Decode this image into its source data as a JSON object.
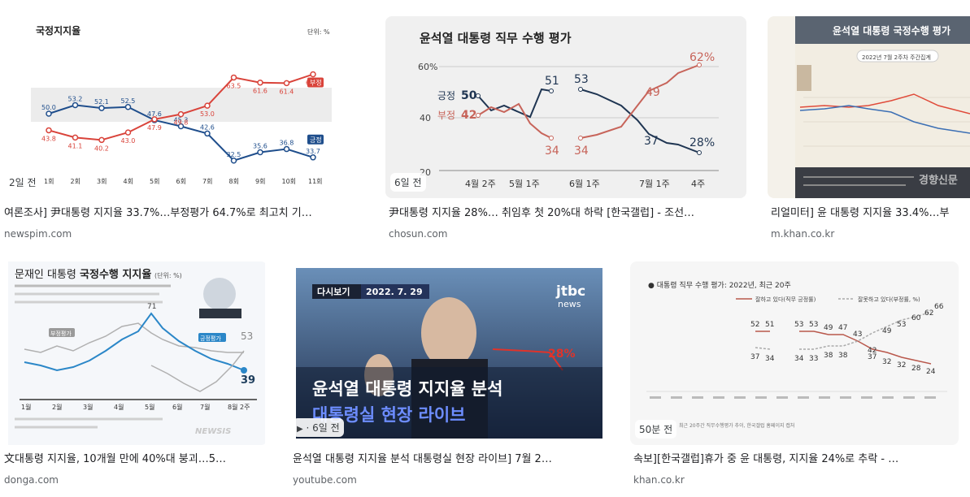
{
  "results": [
    {
      "age": "2일 전",
      "title": "여론조사] 尹대통령 지지율 33.7%…부정평가 64.7%로 최고치 기…",
      "source": "newspim.com",
      "thumb": {
        "heading": "국정지지율",
        "unit": "단위: %",
        "chart_data": {
          "type": "line",
          "categories": [
            "1회",
            "2회",
            "3회",
            "4회",
            "5회",
            "6회",
            "7회",
            "8회",
            "9회",
            "10회",
            "11회"
          ],
          "series": [
            {
              "name": "긍정",
              "values": [
                50.0,
                53.2,
                52.1,
                52.5,
                47.6,
                45.3,
                42.6,
                32.5,
                35.6,
                36.8,
                33.7
              ],
              "color": "#1f4e8c"
            },
            {
              "name": "부정",
              "values": [
                43.8,
                41.1,
                40.2,
                43.0,
                47.9,
                49.8,
                53.0,
                63.5,
                61.6,
                61.4,
                64.7
              ],
              "color": "#d9433a"
            }
          ]
        }
      }
    },
    {
      "age": "6일 전",
      "title": "尹대통령 지지율 28%… 취임후 첫 20%대 하락 [한국갤럽] - 조선…",
      "source": "chosun.com",
      "thumb": {
        "heading": "윤석열 대통령 직무 수행 평가",
        "y_ticks": [
          "60%",
          "40",
          "20"
        ],
        "x_ticks": [
          "4월 2주",
          "5월 1주",
          "6월 1주",
          "7월 1주",
          "4주"
        ],
        "labels": {
          "pos_name": "긍정",
          "pos_start": "50",
          "neg_name": "부정",
          "neg_start": "42",
          "pos_a": "51",
          "pos_b": "53",
          "pos_c": "37",
          "pos_end": "28%",
          "neg_a": "34",
          "neg_b": "34",
          "neg_c": "49",
          "neg_end": "62%"
        }
      }
    },
    {
      "age": "",
      "title": "리얼미터] 윤 대통령 지지율 33.4%…부",
      "source": "m.khan.co.kr",
      "thumb": {
        "heading": "윤석열 대통령 국정수행 평가",
        "subheading": "2022년 7월 2주차 주간집계",
        "watermark": "경향신문"
      }
    },
    {
      "age": "",
      "title": "文대통령 지지율, 10개월 만에 40%대 붕괴…5…",
      "source": "donga.com",
      "thumb": {
        "heading_a": "문재인 대통령 ",
        "heading_b": "국정수행 지지율",
        "unit": "(단위: %)",
        "neg_label": "부정평가",
        "pos_label": "긍정평가",
        "peak": "71",
        "end_pos": "39",
        "end_neg": "53",
        "x_ticks": [
          "1월",
          "2월",
          "3월",
          "4월",
          "5월",
          "6월",
          "7월",
          "8월 2주"
        ],
        "watermark": "NEWSIS"
      }
    },
    {
      "age": "· 6일 전",
      "title": "윤석열 대통령 지지율 분석 대통령실 현장 라이브] 7월 2…",
      "source": "youtube.com",
      "thumb": {
        "badge_a": "다시보기",
        "badge_b": "2022. 7. 29",
        "logo_a": "jtbc",
        "logo_b": "news",
        "pct": "28%",
        "line1": "윤석열 대통령 지지율 분석",
        "line2": "대통령실 현장 라이브"
      }
    },
    {
      "age": "50분 전",
      "title": "속보][한국갤럽]휴가 중 윤 대통령, 지지율 24%로 추락 - …",
      "source": "khan.co.kr",
      "thumb": {
        "heading": "● 대통령 직무 수행 평가: 2022년, 최근 20주",
        "legend_pos": "잘하고 있다(직무 긍정률)",
        "legend_neg": "잘못하고 있다(부정률, %)",
        "pos_values": [
          "52",
          "51",
          "53",
          "53",
          "49",
          "47",
          "43",
          "37",
          "32",
          "32",
          "28",
          "24"
        ],
        "neg_values": [
          "37",
          "34",
          "34",
          "33",
          "38",
          "38",
          "42",
          "49",
          "53",
          "60",
          "62",
          "66"
        ],
        "footnote": "최근 20주간 직무수행평가 추이, 한국갤럽 홈페이지 캡처"
      }
    }
  ]
}
